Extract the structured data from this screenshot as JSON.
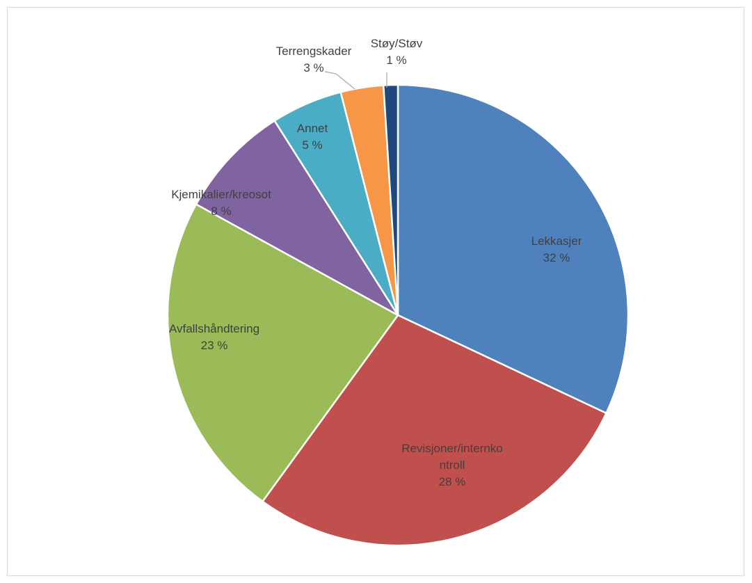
{
  "chart_data": {
    "type": "pie",
    "title": "",
    "slices": [
      {
        "name": "Lekkasjer",
        "label_lines": [
          "Lekkasjer"
        ],
        "value": 32,
        "value_label": "32 %",
        "color": "#4f81bd"
      },
      {
        "name": "Revisjoner/internkontroll",
        "label_lines": [
          "Revisjoner/internko",
          "ntroll"
        ],
        "value": 28,
        "value_label": "28 %",
        "color": "#c0504d"
      },
      {
        "name": "Avfallshåndtering",
        "label_lines": [
          "Avfallshåndtering"
        ],
        "value": 23,
        "value_label": "23 %",
        "color": "#9bbb59"
      },
      {
        "name": "Kjemikalier/kreosot",
        "label_lines": [
          "Kjemikalier/kreosot"
        ],
        "value": 8,
        "value_label": "8 %",
        "color": "#8064a2"
      },
      {
        "name": "Annet",
        "label_lines": [
          "Annet"
        ],
        "value": 5,
        "value_label": "5 %",
        "color": "#4bacc6"
      },
      {
        "name": "Terrengskader",
        "label_lines": [
          "Terrengskader"
        ],
        "value": 3,
        "value_label": "3 %",
        "color": "#f79646"
      },
      {
        "name": "Støy/Støv",
        "label_lines": [
          "Støy/Støv"
        ],
        "value": 1,
        "value_label": "1 %",
        "color": "#1f497d"
      }
    ],
    "legend": "none"
  }
}
